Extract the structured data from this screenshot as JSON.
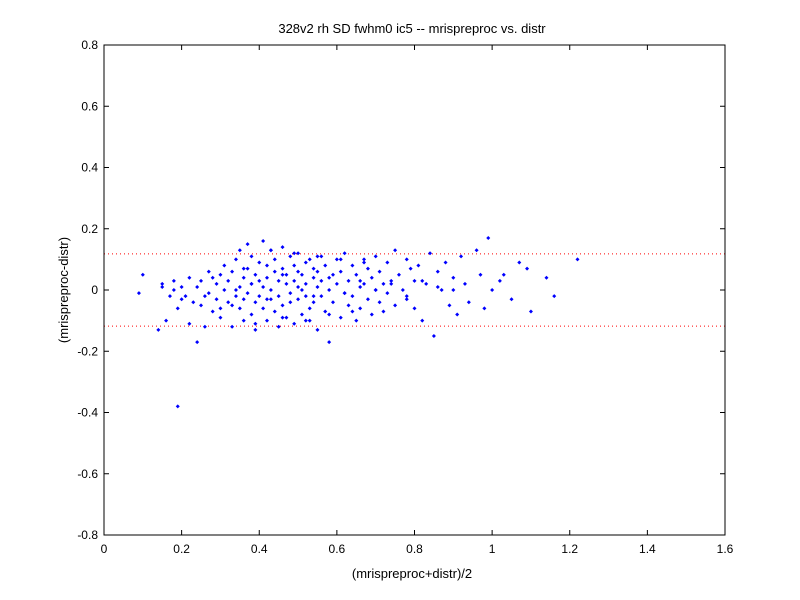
{
  "chart_data": {
    "type": "scatter",
    "title": "328v2 rh SD fwhm0 ic5 -- mrispreproc vs. distr",
    "xlabel": "(mrispreproc+distr)/2",
    "ylabel": "(mrispreproc-distr)",
    "xlim": [
      0,
      1.6
    ],
    "ylim": [
      -0.8,
      0.8
    ],
    "xticks": [
      0,
      0.2,
      0.4,
      0.6,
      0.8,
      1,
      1.2,
      1.4,
      1.6
    ],
    "xtick_labels": [
      "0",
      "0.2",
      "0.4",
      "0.6",
      "0.8",
      "1",
      "1.2",
      "1.4",
      "1.6"
    ],
    "yticks": [
      -0.8,
      -0.6,
      -0.4,
      -0.2,
      0,
      0.2,
      0.4,
      0.6,
      0.8
    ],
    "ytick_labels": [
      "-0.8",
      "-0.6",
      "-0.4",
      "-0.2",
      "0",
      "0.2",
      "0.4",
      "0.6",
      "0.8"
    ],
    "reference_lines": [
      0.118,
      -0.118
    ],
    "grid": false,
    "colors": {
      "points": "#0000ff",
      "reference": "#ff0000",
      "axes": "#000000"
    },
    "x": [
      0.09,
      0.1,
      0.14,
      0.15,
      0.15,
      0.16,
      0.17,
      0.18,
      0.18,
      0.19,
      0.2,
      0.2,
      0.21,
      0.22,
      0.22,
      0.23,
      0.24,
      0.24,
      0.25,
      0.25,
      0.26,
      0.26,
      0.27,
      0.27,
      0.28,
      0.28,
      0.29,
      0.29,
      0.3,
      0.3,
      0.31,
      0.31,
      0.32,
      0.32,
      0.33,
      0.33,
      0.34,
      0.34,
      0.35,
      0.35,
      0.35,
      0.36,
      0.36,
      0.36,
      0.37,
      0.37,
      0.37,
      0.38,
      0.38,
      0.38,
      0.39,
      0.39,
      0.39,
      0.4,
      0.4,
      0.4,
      0.41,
      0.41,
      0.41,
      0.42,
      0.42,
      0.42,
      0.43,
      0.43,
      0.43,
      0.44,
      0.44,
      0.44,
      0.45,
      0.45,
      0.45,
      0.46,
      0.46,
      0.46,
      0.47,
      0.47,
      0.47,
      0.48,
      0.48,
      0.48,
      0.49,
      0.49,
      0.49,
      0.5,
      0.5,
      0.5,
      0.51,
      0.51,
      0.51,
      0.52,
      0.52,
      0.52,
      0.53,
      0.53,
      0.53,
      0.54,
      0.54,
      0.54,
      0.55,
      0.55,
      0.55,
      0.56,
      0.56,
      0.56,
      0.57,
      0.57,
      0.58,
      0.58,
      0.59,
      0.59,
      0.6,
      0.6,
      0.61,
      0.61,
      0.62,
      0.62,
      0.63,
      0.63,
      0.64,
      0.64,
      0.65,
      0.65,
      0.66,
      0.66,
      0.67,
      0.67,
      0.68,
      0.68,
      0.69,
      0.69,
      0.7,
      0.7,
      0.71,
      0.71,
      0.72,
      0.72,
      0.73,
      0.73,
      0.74,
      0.75,
      0.75,
      0.76,
      0.77,
      0.78,
      0.78,
      0.79,
      0.8,
      0.8,
      0.81,
      0.82,
      0.83,
      0.84,
      0.85,
      0.86,
      0.87,
      0.88,
      0.89,
      0.9,
      0.91,
      0.92,
      0.93,
      0.94,
      0.96,
      0.97,
      0.98,
      0.99,
      1.0,
      1.02,
      1.03,
      1.05,
      1.07,
      1.09,
      1.1,
      1.14,
      1.16,
      1.22,
      0.19,
      0.33,
      0.36,
      0.39,
      0.43,
      0.46,
      0.49,
      0.52,
      0.55,
      0.58,
      0.61,
      0.64,
      0.67,
      0.3,
      0.34,
      0.38,
      0.42,
      0.46,
      0.5,
      0.54,
      0.58,
      0.62,
      0.66,
      0.7,
      0.74,
      0.78,
      0.82,
      0.86,
      0.9
    ],
    "y": [
      -0.01,
      0.05,
      -0.13,
      0.02,
      0.01,
      -0.1,
      -0.02,
      0.0,
      0.03,
      -0.06,
      0.01,
      -0.03,
      -0.02,
      -0.11,
      0.04,
      -0.04,
      -0.17,
      0.01,
      -0.05,
      0.03,
      -0.02,
      -0.12,
      0.06,
      -0.01,
      0.04,
      -0.07,
      0.02,
      -0.03,
      0.05,
      -0.09,
      0.0,
      0.08,
      -0.04,
      0.03,
      -0.12,
      0.06,
      -0.02,
      0.1,
      0.01,
      -0.06,
      0.13,
      -0.03,
      0.04,
      -0.1,
      0.07,
      -0.01,
      0.15,
      0.02,
      -0.08,
      0.11,
      -0.04,
      0.05,
      -0.13,
      0.09,
      -0.02,
      0.03,
      0.16,
      -0.06,
      0.01,
      0.08,
      -0.1,
      0.04,
      -0.03,
      0.13,
      0.0,
      0.06,
      -0.07,
      0.1,
      -0.02,
      0.03,
      -0.12,
      0.07,
      -0.05,
      0.14,
      0.02,
      -0.09,
      0.05,
      -0.01,
      0.11,
      -0.04,
      0.08,
      -0.11,
      0.03,
      0.06,
      -0.03,
      0.12,
      0.0,
      -0.08,
      0.05,
      0.09,
      -0.02,
      0.02,
      -0.06,
      0.1,
      -0.1,
      0.04,
      0.07,
      -0.04,
      0.01,
      -0.13,
      0.06,
      0.11,
      -0.02,
      0.03,
      -0.07,
      0.08,
      0.0,
      -0.17,
      0.05,
      -0.04,
      0.1,
      0.02,
      -0.09,
      0.06,
      -0.01,
      0.12,
      -0.05,
      0.03,
      0.08,
      -0.02,
      -0.1,
      0.05,
      0.01,
      -0.06,
      0.1,
      0.02,
      -0.03,
      0.07,
      -0.08,
      0.04,
      0.0,
      0.11,
      -0.04,
      0.06,
      0.02,
      -0.07,
      0.09,
      -0.01,
      0.03,
      0.13,
      -0.05,
      0.05,
      0.0,
      0.1,
      -0.03,
      0.07,
      -0.06,
      0.03,
      0.08,
      -0.1,
      0.02,
      0.12,
      -0.15,
      0.06,
      0.0,
      0.09,
      -0.05,
      0.04,
      -0.08,
      0.11,
      0.02,
      -0.04,
      0.13,
      0.05,
      -0.06,
      0.17,
      0.0,
      0.03,
      0.05,
      -0.03,
      0.09,
      0.07,
      -0.07,
      0.04,
      -0.02,
      0.1,
      -0.38,
      -0.05,
      0.07,
      -0.11,
      0.13,
      -0.09,
      0.12,
      -0.1,
      0.11,
      -0.08,
      0.1,
      -0.07,
      0.09,
      -0.06,
      0.0,
      0.02,
      -0.03,
      0.05,
      0.01,
      -0.02,
      0.04,
      -0.01,
      0.03,
      0.0,
      0.02,
      -0.02,
      0.03,
      0.01,
      0.0
    ]
  }
}
